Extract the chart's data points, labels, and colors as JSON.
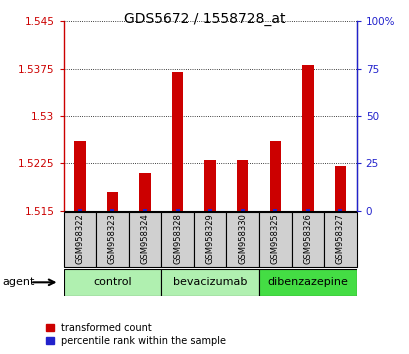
{
  "title": "GDS5672 / 1558728_at",
  "samples": [
    "GSM958322",
    "GSM958323",
    "GSM958324",
    "GSM958328",
    "GSM958329",
    "GSM958330",
    "GSM958325",
    "GSM958326",
    "GSM958327"
  ],
  "red_values": [
    1.526,
    1.518,
    1.521,
    1.537,
    1.523,
    1.523,
    1.526,
    1.538,
    1.522
  ],
  "blue_pct": [
    1,
    1,
    1,
    1,
    1,
    1,
    1,
    1,
    1
  ],
  "ylim_left": [
    1.515,
    1.545
  ],
  "ylim_right": [
    0,
    100
  ],
  "yticks_left": [
    1.515,
    1.5225,
    1.53,
    1.5375,
    1.545
  ],
  "ytick_labels_left": [
    "1.515",
    "1.5225",
    "1.53",
    "1.5375",
    "1.545"
  ],
  "yticks_right": [
    0,
    25,
    50,
    75,
    100
  ],
  "ytick_labels_right": [
    "0",
    "25",
    "50",
    "75",
    "100%"
  ],
  "groups": [
    {
      "label": "control",
      "start": 0,
      "end": 2,
      "color": "#b0f0b0"
    },
    {
      "label": "bevacizumab",
      "start": 3,
      "end": 5,
      "color": "#b0f0b0"
    },
    {
      "label": "dibenzazepine",
      "start": 6,
      "end": 8,
      "color": "#44dd44"
    }
  ],
  "agent_label": "agent",
  "legend_red": "transformed count",
  "legend_blue": "percentile rank within the sample",
  "red_color": "#cc0000",
  "blue_color": "#2222cc",
  "sample_box_color": "#d0d0d0",
  "title_fontsize": 10,
  "tick_fontsize": 7.5,
  "sample_fontsize": 6,
  "group_fontsize": 8,
  "legend_fontsize": 7,
  "agent_fontsize": 8
}
